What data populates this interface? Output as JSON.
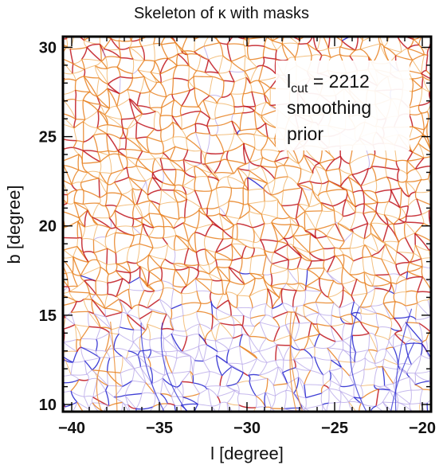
{
  "chart_data": {
    "type": "heatmap",
    "title": "Skeleton of κ with masks",
    "xlabel": "l [degree]",
    "ylabel": "b [degree]",
    "xlim": [
      -40.5,
      -19.5
    ],
    "ylim": [
      9.6,
      30.6
    ],
    "x_ticks": [
      -40,
      -35,
      -30,
      -25,
      -20
    ],
    "x_tick_labels": [
      "−40",
      "−35",
      "−30",
      "−25",
      "−20"
    ],
    "y_ticks": [
      10,
      15,
      20,
      25,
      30
    ],
    "y_tick_labels": [
      "10",
      "15",
      "20",
      "25",
      "30"
    ],
    "annotation": {
      "l_symbol": "l",
      "subscript": "cut",
      "value_text": " = 2212",
      "line2": "smoothing",
      "line3": "prior"
    },
    "colors": {
      "skeleton_strong": "#c0141c",
      "skeleton_medium": "#e8801e",
      "skeleton_weak": "#f0b060",
      "masked_blue": "#2a2ad0",
      "masked_light": "#b8a8e8",
      "frame": "#000000"
    },
    "mask_transition_b": 14.5
  }
}
